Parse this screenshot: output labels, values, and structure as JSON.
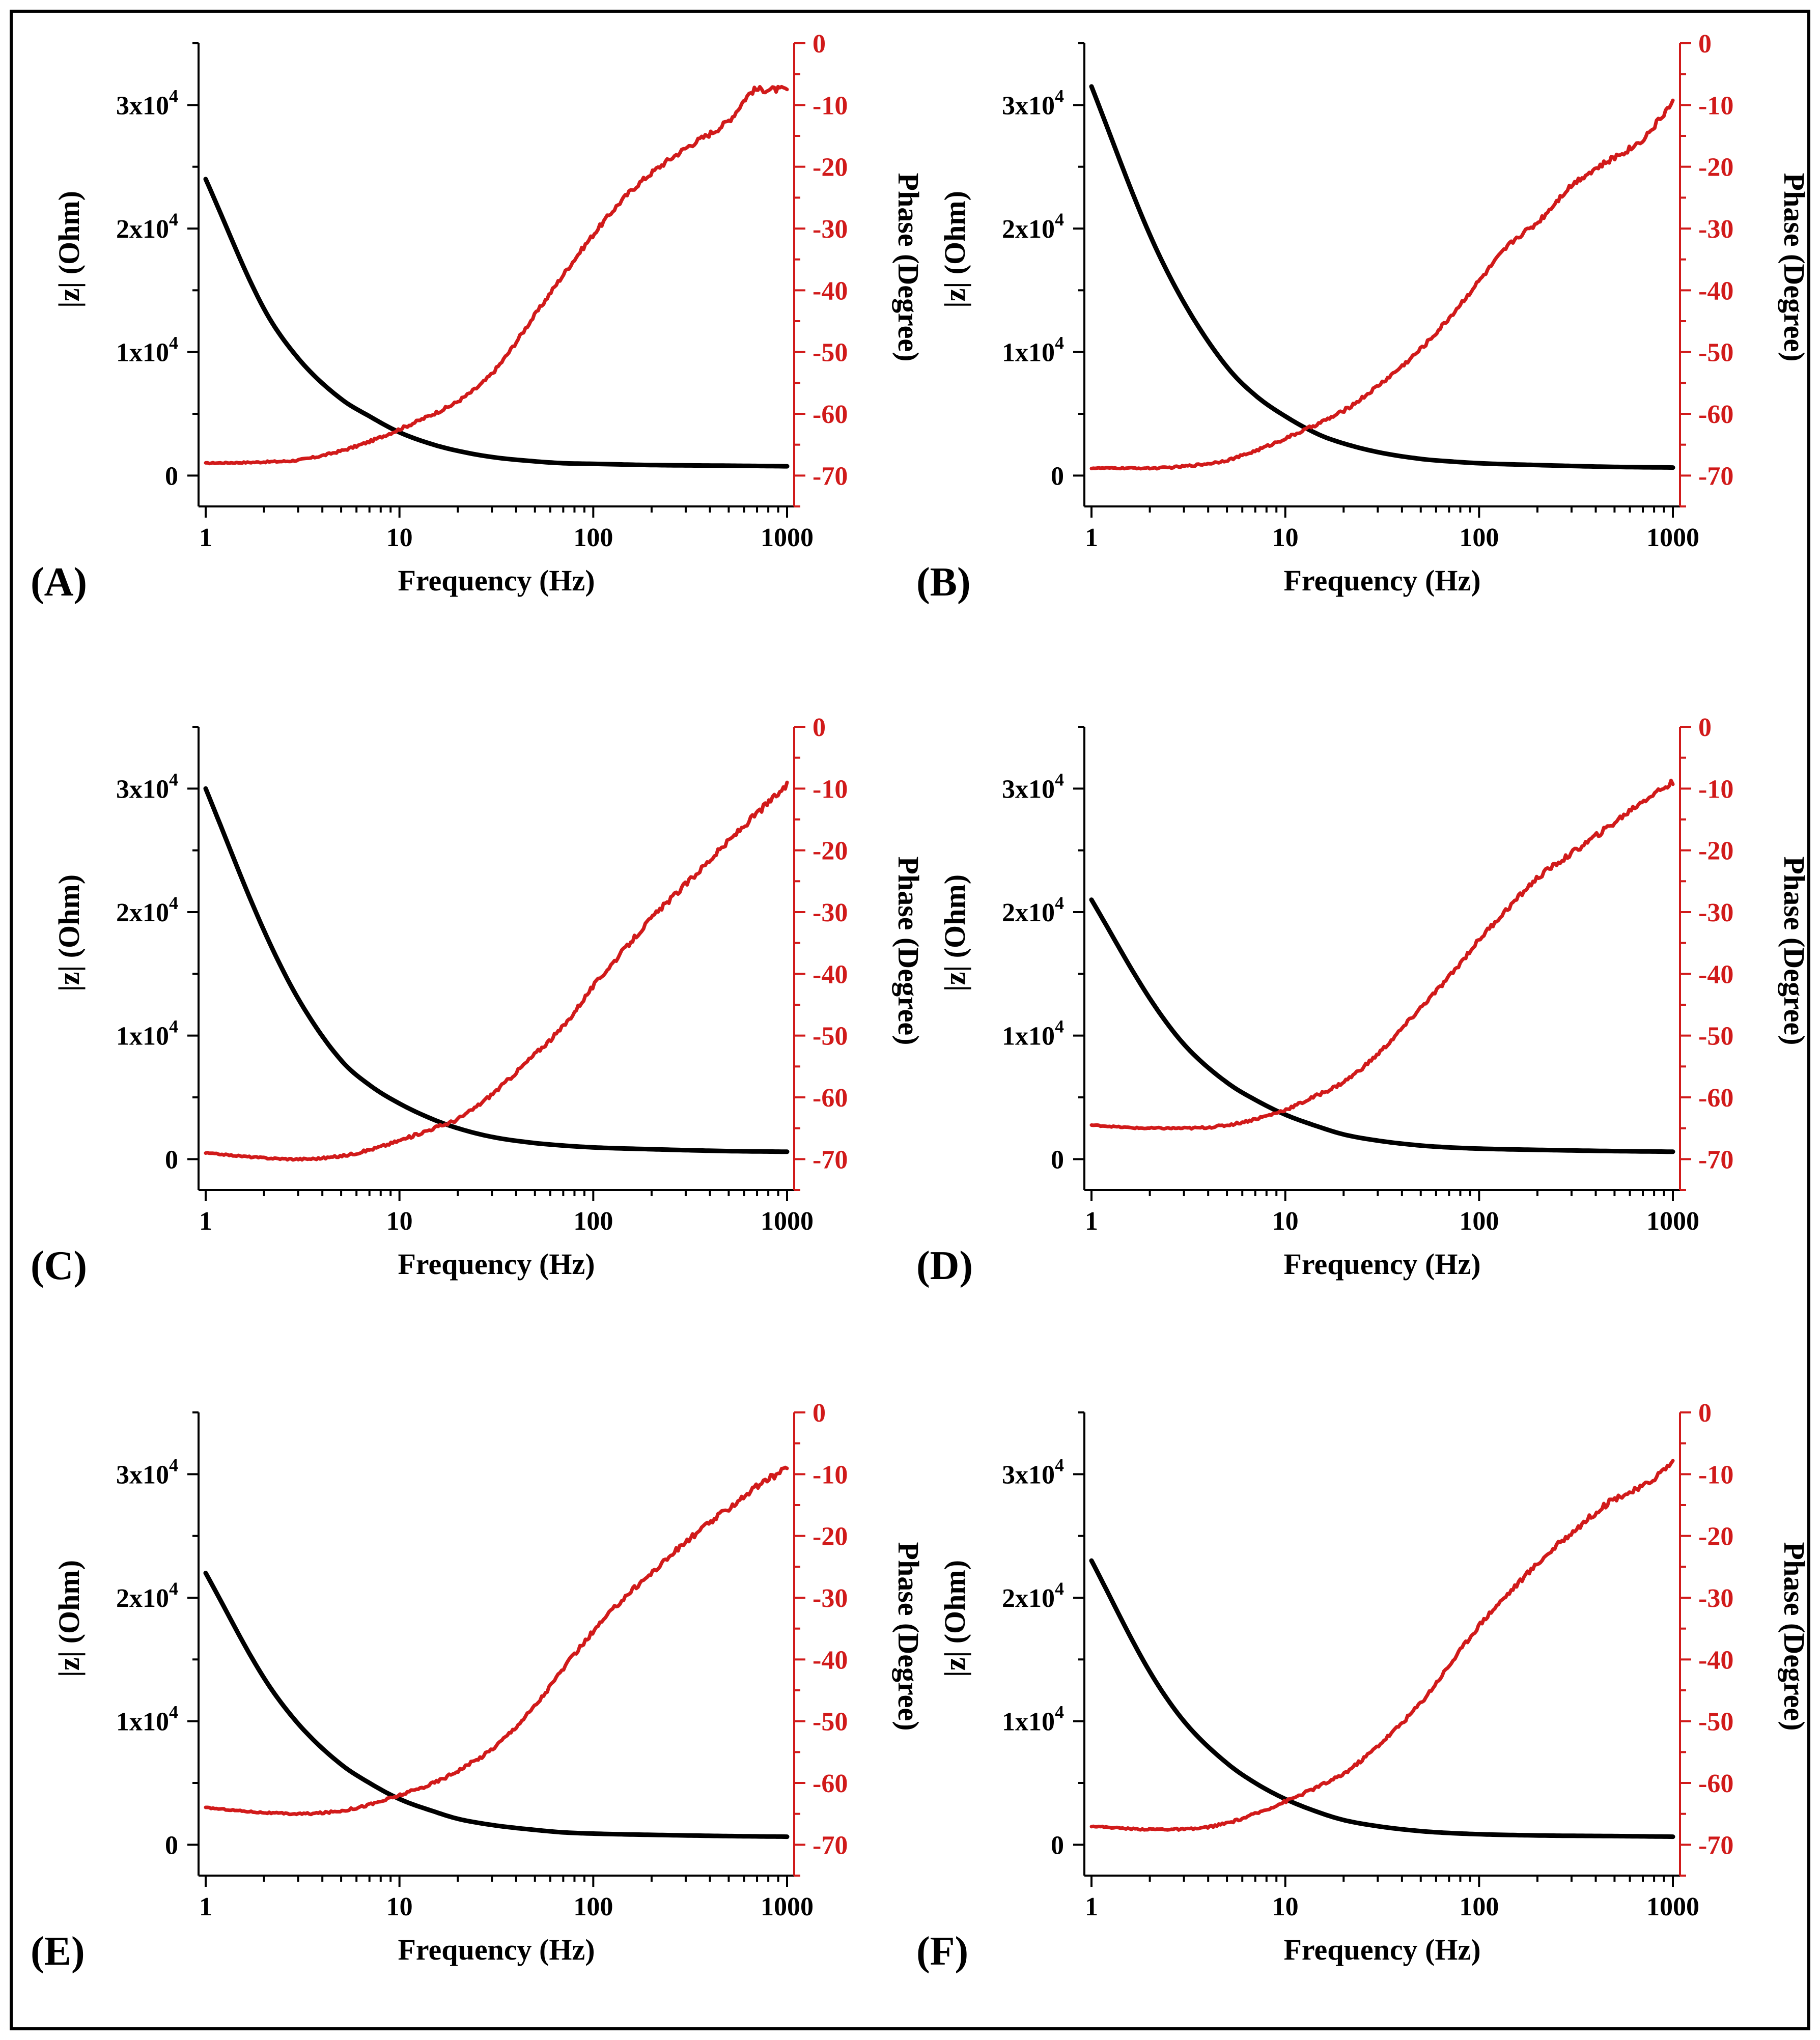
{
  "figure": {
    "colors": {
      "magnitude": "#000000",
      "phase": "#d11a1a",
      "background": "#ffffff"
    }
  },
  "chart_data": [
    {
      "type": "line",
      "panel_label": "(A)",
      "xlabel": "Frequency (Hz)",
      "ylabel_left": "|z| (Ohm)",
      "ylabel_right": "Phase (Degree)",
      "x_scale": "log",
      "xlim": [
        1,
        1000
      ],
      "x_ticks": [
        1,
        10,
        100,
        1000
      ],
      "x_tick_labels": [
        "1",
        "10",
        "100",
        "1000"
      ],
      "ylim_left": [
        -2500,
        35000
      ],
      "y_left_ticks": [
        0,
        10000,
        20000,
        30000
      ],
      "y_left_tick_labels": [
        {
          "mantissa": "0",
          "exponent": ""
        },
        {
          "mantissa": "1x10",
          "exponent": "4"
        },
        {
          "mantissa": "2x10",
          "exponent": "4"
        },
        {
          "mantissa": "3x10",
          "exponent": "4"
        }
      ],
      "ylim_right": [
        -75,
        0
      ],
      "y_right_ticks": [
        0,
        -10,
        -20,
        -30,
        -40,
        -50,
        -60,
        -70
      ],
      "y_right_tick_labels": [
        "0",
        "-10",
        "-20",
        "-30",
        "-40",
        "-50",
        "-60",
        "-70"
      ],
      "series": [
        {
          "name": "|z|",
          "axis": "left",
          "color": "#000000",
          "x": [
            1,
            2,
            3,
            5,
            7,
            10,
            15,
            20,
            30,
            50,
            70,
            100,
            200,
            500,
            1000
          ],
          "values": [
            24000,
            13500,
            9500,
            6200,
            4800,
            3500,
            2500,
            2000,
            1500,
            1150,
            1000,
            950,
            850,
            800,
            750
          ]
        },
        {
          "name": "Phase",
          "axis": "right",
          "color": "#d11a1a",
          "x": [
            1,
            2,
            3,
            5,
            7,
            10,
            15,
            20,
            30,
            50,
            70,
            100,
            150,
            200,
            300,
            500,
            700,
            1000
          ],
          "values": [
            -68,
            -67.8,
            -67.5,
            -66,
            -64.5,
            -62.5,
            -60,
            -58,
            -53.5,
            -44,
            -37.5,
            -31,
            -24.5,
            -21,
            -17,
            -12.5,
            -7.5,
            -7.5
          ]
        }
      ]
    },
    {
      "type": "line",
      "panel_label": "(B)",
      "xlabel": "Frequency (Hz)",
      "ylabel_left": "|z| (Ohm)",
      "ylabel_right": "Phase (Degree)",
      "x_scale": "log",
      "xlim": [
        1,
        1000
      ],
      "x_ticks": [
        1,
        10,
        100,
        1000
      ],
      "x_tick_labels": [
        "1",
        "10",
        "100",
        "1000"
      ],
      "ylim_left": [
        -2500,
        35000
      ],
      "y_left_ticks": [
        0,
        10000,
        20000,
        30000
      ],
      "y_left_tick_labels": [
        {
          "mantissa": "0",
          "exponent": ""
        },
        {
          "mantissa": "1x10",
          "exponent": "4"
        },
        {
          "mantissa": "2x10",
          "exponent": "4"
        },
        {
          "mantissa": "3x10",
          "exponent": "4"
        }
      ],
      "ylim_right": [
        -75,
        0
      ],
      "y_right_ticks": [
        0,
        -10,
        -20,
        -30,
        -40,
        -50,
        -60,
        -70
      ],
      "y_right_tick_labels": [
        "0",
        "-10",
        "-20",
        "-30",
        "-40",
        "-50",
        "-60",
        "-70"
      ],
      "series": [
        {
          "name": "|z|",
          "axis": "left",
          "color": "#000000",
          "x": [
            1,
            2,
            3,
            5,
            7,
            10,
            15,
            20,
            30,
            50,
            70,
            100,
            200,
            500,
            1000
          ],
          "values": [
            31500,
            19500,
            14000,
            8800,
            6500,
            4800,
            3300,
            2600,
            1900,
            1350,
            1150,
            1000,
            850,
            700,
            650
          ]
        },
        {
          "name": "Phase",
          "axis": "right",
          "color": "#d11a1a",
          "x": [
            1,
            2,
            3,
            5,
            7,
            10,
            15,
            20,
            30,
            50,
            70,
            100,
            150,
            200,
            300,
            500,
            700,
            1000
          ],
          "values": [
            -68.8,
            -68.8,
            -68.5,
            -67.5,
            -66,
            -64,
            -61.5,
            -59.5,
            -55.5,
            -49.5,
            -44.5,
            -38.5,
            -32,
            -29,
            -23,
            -18.5,
            -15.5,
            -9.5
          ]
        }
      ]
    },
    {
      "type": "line",
      "panel_label": "(C)",
      "xlabel": "Frequency (Hz)",
      "ylabel_left": "|z| (Ohm)",
      "ylabel_right": "Phase (Degree)",
      "x_scale": "log",
      "xlim": [
        1,
        1000
      ],
      "x_ticks": [
        1,
        10,
        100,
        1000
      ],
      "x_tick_labels": [
        "1",
        "10",
        "100",
        "1000"
      ],
      "ylim_left": [
        -2500,
        35000
      ],
      "y_left_ticks": [
        0,
        10000,
        20000,
        30000
      ],
      "y_left_tick_labels": [
        {
          "mantissa": "0",
          "exponent": ""
        },
        {
          "mantissa": "1x10",
          "exponent": "4"
        },
        {
          "mantissa": "2x10",
          "exponent": "4"
        },
        {
          "mantissa": "3x10",
          "exponent": "4"
        }
      ],
      "ylim_right": [
        -75,
        0
      ],
      "y_right_ticks": [
        0,
        -10,
        -20,
        -30,
        -40,
        -50,
        -60,
        -70
      ],
      "y_right_tick_labels": [
        "0",
        "-10",
        "-20",
        "-30",
        "-40",
        "-50",
        "-60",
        "-70"
      ],
      "series": [
        {
          "name": "|z|",
          "axis": "left",
          "color": "#000000",
          "x": [
            1,
            2,
            3,
            5,
            7,
            10,
            15,
            20,
            30,
            50,
            70,
            100,
            200,
            500,
            1000
          ],
          "values": [
            30000,
            18500,
            13000,
            8000,
            6000,
            4500,
            3200,
            2500,
            1800,
            1300,
            1100,
            950,
            800,
            650,
            600
          ]
        },
        {
          "name": "Phase",
          "axis": "right",
          "color": "#d11a1a",
          "x": [
            1,
            2,
            3,
            5,
            7,
            10,
            15,
            20,
            30,
            50,
            70,
            100,
            150,
            200,
            300,
            500,
            700,
            1000
          ],
          "values": [
            -69,
            -69.8,
            -70,
            -69.5,
            -68.5,
            -67,
            -65,
            -63.5,
            -59.5,
            -53,
            -48.5,
            -42,
            -35.5,
            -31,
            -25.5,
            -18.5,
            -14,
            -9.5
          ]
        }
      ]
    },
    {
      "type": "line",
      "panel_label": "(D)",
      "xlabel": "Frequency (Hz)",
      "ylabel_left": "|z| (Ohm)",
      "ylabel_right": "Phase (Degree)",
      "x_scale": "log",
      "xlim": [
        1,
        1000
      ],
      "x_ticks": [
        1,
        10,
        100,
        1000
      ],
      "x_tick_labels": [
        "1",
        "10",
        "100",
        "1000"
      ],
      "ylim_left": [
        -2500,
        35000
      ],
      "y_left_ticks": [
        0,
        10000,
        20000,
        30000
      ],
      "y_left_tick_labels": [
        {
          "mantissa": "0",
          "exponent": ""
        },
        {
          "mantissa": "1x10",
          "exponent": "4"
        },
        {
          "mantissa": "2x10",
          "exponent": "4"
        },
        {
          "mantissa": "3x10",
          "exponent": "4"
        }
      ],
      "ylim_right": [
        -75,
        0
      ],
      "y_right_ticks": [
        0,
        -10,
        -20,
        -30,
        -40,
        -50,
        -60,
        -70
      ],
      "y_right_tick_labels": [
        "0",
        "-10",
        "-20",
        "-30",
        "-40",
        "-50",
        "-60",
        "-70"
      ],
      "series": [
        {
          "name": "|z|",
          "axis": "left",
          "color": "#000000",
          "x": [
            1,
            2,
            3,
            5,
            7,
            10,
            15,
            20,
            30,
            50,
            70,
            100,
            200,
            500,
            1000
          ],
          "values": [
            21000,
            13000,
            9300,
            6200,
            4800,
            3600,
            2600,
            2000,
            1500,
            1100,
            950,
            850,
            750,
            650,
            600
          ]
        },
        {
          "name": "Phase",
          "axis": "right",
          "color": "#d11a1a",
          "x": [
            1,
            2,
            3,
            5,
            7,
            10,
            15,
            20,
            30,
            50,
            70,
            100,
            150,
            200,
            300,
            500,
            700,
            1000
          ],
          "values": [
            -64.5,
            -65,
            -65,
            -64.5,
            -63.5,
            -62,
            -59.5,
            -57.5,
            -53,
            -45.5,
            -40.5,
            -34.5,
            -28.5,
            -24.5,
            -20.5,
            -15.5,
            -12,
            -9
          ]
        }
      ]
    },
    {
      "type": "line",
      "panel_label": "(E)",
      "xlabel": "Frequency (Hz)",
      "ylabel_left": "|z| (Ohm)",
      "ylabel_right": "Phase (Degree)",
      "x_scale": "log",
      "xlim": [
        1,
        1000
      ],
      "x_ticks": [
        1,
        10,
        100,
        1000
      ],
      "x_tick_labels": [
        "1",
        "10",
        "100",
        "1000"
      ],
      "ylim_left": [
        -2500,
        35000
      ],
      "y_left_ticks": [
        0,
        10000,
        20000,
        30000
      ],
      "y_left_tick_labels": [
        {
          "mantissa": "0",
          "exponent": ""
        },
        {
          "mantissa": "1x10",
          "exponent": "4"
        },
        {
          "mantissa": "2x10",
          "exponent": "4"
        },
        {
          "mantissa": "3x10",
          "exponent": "4"
        }
      ],
      "ylim_right": [
        -75,
        0
      ],
      "y_right_ticks": [
        0,
        -10,
        -20,
        -30,
        -40,
        -50,
        -60,
        -70
      ],
      "y_right_tick_labels": [
        "0",
        "-10",
        "-20",
        "-30",
        "-40",
        "-50",
        "-60",
        "-70"
      ],
      "series": [
        {
          "name": "|z|",
          "axis": "left",
          "color": "#000000",
          "x": [
            1,
            2,
            3,
            5,
            7,
            10,
            15,
            20,
            30,
            50,
            70,
            100,
            200,
            500,
            1000
          ],
          "values": [
            22000,
            13500,
            9800,
            6500,
            5000,
            3700,
            2700,
            2100,
            1600,
            1200,
            1000,
            900,
            800,
            700,
            650
          ]
        },
        {
          "name": "Phase",
          "axis": "right",
          "color": "#d11a1a",
          "x": [
            1,
            2,
            3,
            5,
            7,
            10,
            15,
            20,
            30,
            50,
            70,
            100,
            150,
            200,
            300,
            500,
            700,
            1000
          ],
          "values": [
            -64,
            -64.8,
            -65,
            -64.5,
            -63.5,
            -62,
            -60,
            -58,
            -54.5,
            -47.5,
            -41.5,
            -35.5,
            -29.5,
            -26,
            -21,
            -15.5,
            -12,
            -9
          ]
        }
      ]
    },
    {
      "type": "line",
      "panel_label": "(F)",
      "xlabel": "Frequency (Hz)",
      "ylabel_left": "|z| (Ohm)",
      "ylabel_right": "Phase (Degree)",
      "x_scale": "log",
      "xlim": [
        1,
        1000
      ],
      "x_ticks": [
        1,
        10,
        100,
        1000
      ],
      "x_tick_labels": [
        "1",
        "10",
        "100",
        "1000"
      ],
      "ylim_left": [
        -2500,
        35000
      ],
      "y_left_ticks": [
        0,
        10000,
        20000,
        30000
      ],
      "y_left_tick_labels": [
        {
          "mantissa": "0",
          "exponent": ""
        },
        {
          "mantissa": "1x10",
          "exponent": "4"
        },
        {
          "mantissa": "2x10",
          "exponent": "4"
        },
        {
          "mantissa": "3x10",
          "exponent": "4"
        }
      ],
      "ylim_right": [
        -75,
        0
      ],
      "y_right_ticks": [
        0,
        -10,
        -20,
        -30,
        -40,
        -50,
        -60,
        -70
      ],
      "y_right_tick_labels": [
        "0",
        "-10",
        "-20",
        "-30",
        "-40",
        "-50",
        "-60",
        "-70"
      ],
      "series": [
        {
          "name": "|z|",
          "axis": "left",
          "color": "#000000",
          "x": [
            1,
            2,
            3,
            5,
            7,
            10,
            15,
            20,
            30,
            50,
            70,
            100,
            200,
            500,
            1000
          ],
          "values": [
            23000,
            14000,
            10000,
            6600,
            5000,
            3700,
            2600,
            2000,
            1500,
            1100,
            950,
            850,
            750,
            700,
            650
          ]
        },
        {
          "name": "Phase",
          "axis": "right",
          "color": "#d11a1a",
          "x": [
            1,
            2,
            3,
            5,
            7,
            10,
            15,
            20,
            30,
            50,
            70,
            100,
            150,
            200,
            300,
            500,
            700,
            1000
          ],
          "values": [
            -67,
            -67.5,
            -67.5,
            -66.5,
            -65,
            -63,
            -60.5,
            -58.5,
            -54,
            -47,
            -41,
            -34.5,
            -28.5,
            -24.5,
            -19.5,
            -14,
            -12,
            -8
          ]
        }
      ]
    }
  ]
}
